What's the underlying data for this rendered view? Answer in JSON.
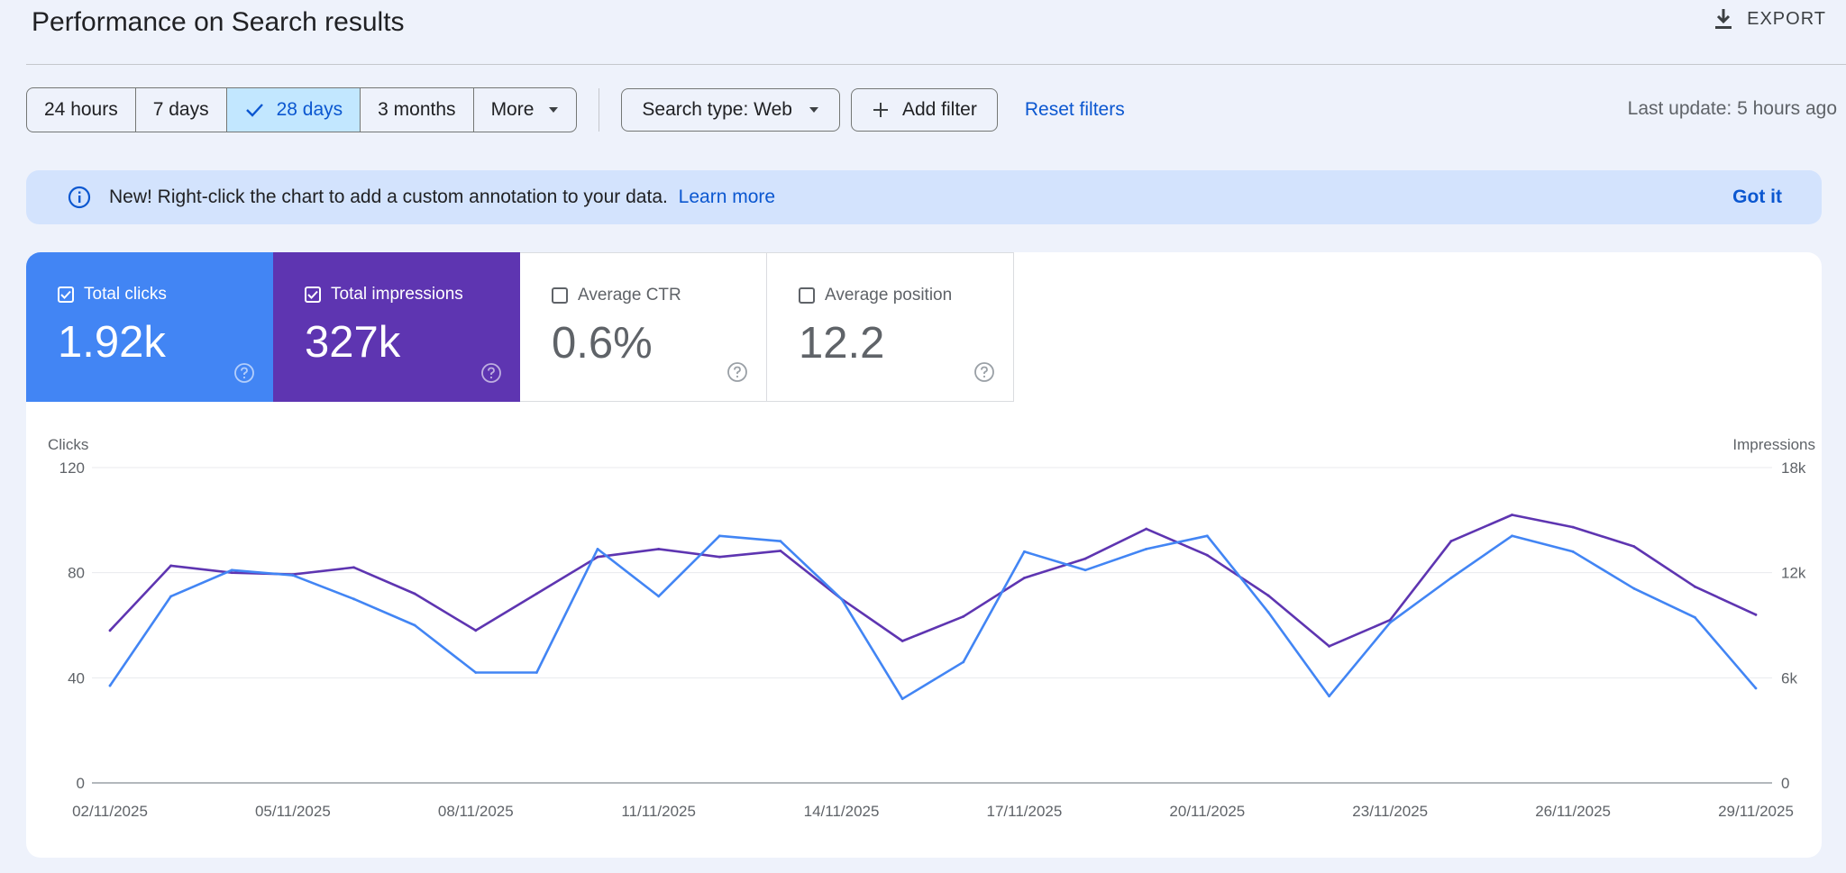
{
  "header": {
    "title": "Performance on Search results",
    "export_label": "EXPORT",
    "export_icon": "download-icon"
  },
  "filters": {
    "ranges": [
      "24 hours",
      "7 days",
      "28 days",
      "3 months",
      "More"
    ],
    "selected_range": "28 days",
    "search_type": "Search type: Web",
    "add_filter": "Add filter",
    "reset": "Reset filters",
    "last_update": "Last update: 5 hours ago"
  },
  "banner": {
    "message": "New! Right-click the chart to add a custom annotation to your data.",
    "link": "Learn more",
    "dismiss": "Got it"
  },
  "metrics": [
    {
      "label": "Total clicks",
      "value": "1.92k",
      "checked": true,
      "color": "#4285f4"
    },
    {
      "label": "Total impressions",
      "value": "327k",
      "checked": true,
      "color": "#5e35b1"
    },
    {
      "label": "Average CTR",
      "value": "0.6%",
      "checked": false
    },
    {
      "label": "Average position",
      "value": "12.2",
      "checked": false
    }
  ],
  "colors": {
    "clicks": "#4285f4",
    "impressions": "#5e35b1",
    "accent": "#0b57d0",
    "selected_bg": "#c2e7ff",
    "banner_bg": "#d3e3fd"
  },
  "chart_data": {
    "type": "line",
    "ylabel_left": "Clicks",
    "ylabel_right": "Impressions",
    "y_left_ticks": [
      "0",
      "40",
      "80",
      "120"
    ],
    "y_right_ticks": [
      "0",
      "6k",
      "12k",
      "18k"
    ],
    "ylim_left": [
      0,
      120
    ],
    "ylim_right": [
      0,
      18000
    ],
    "grid": true,
    "x_tick_labels": [
      "02/11/2025",
      "05/11/2025",
      "08/11/2025",
      "11/11/2025",
      "14/11/2025",
      "17/11/2025",
      "20/11/2025",
      "23/11/2025",
      "26/11/2025",
      "29/11/2025"
    ],
    "x": [
      "02/11/2025",
      "03/11/2025",
      "04/11/2025",
      "05/11/2025",
      "06/11/2025",
      "07/11/2025",
      "08/11/2025",
      "09/11/2025",
      "10/11/2025",
      "11/11/2025",
      "12/11/2025",
      "13/11/2025",
      "14/11/2025",
      "15/11/2025",
      "16/11/2025",
      "17/11/2025",
      "18/11/2025",
      "19/11/2025",
      "20/11/2025",
      "21/11/2025",
      "22/11/2025",
      "23/11/2025",
      "24/11/2025",
      "25/11/2025",
      "26/11/2025",
      "27/11/2025",
      "28/11/2025",
      "29/11/2025"
    ],
    "series": [
      {
        "name": "Total clicks",
        "axis": "left",
        "values": [
          37,
          71,
          81,
          79,
          70,
          60,
          42,
          42,
          89,
          71,
          94,
          92,
          70,
          32,
          46,
          88,
          81,
          89,
          94,
          65,
          33,
          61,
          78,
          94,
          88,
          74,
          63,
          36
        ]
      },
      {
        "name": "Total impressions",
        "axis": "right",
        "values": [
          8700,
          12400,
          12000,
          11900,
          12300,
          10800,
          8700,
          10800,
          12900,
          13350,
          12900,
          13250,
          10500,
          8100,
          9500,
          11700,
          12800,
          14500,
          13000,
          10700,
          7800,
          9300,
          13800,
          15300,
          14600,
          13500,
          11200,
          9600
        ]
      }
    ]
  }
}
